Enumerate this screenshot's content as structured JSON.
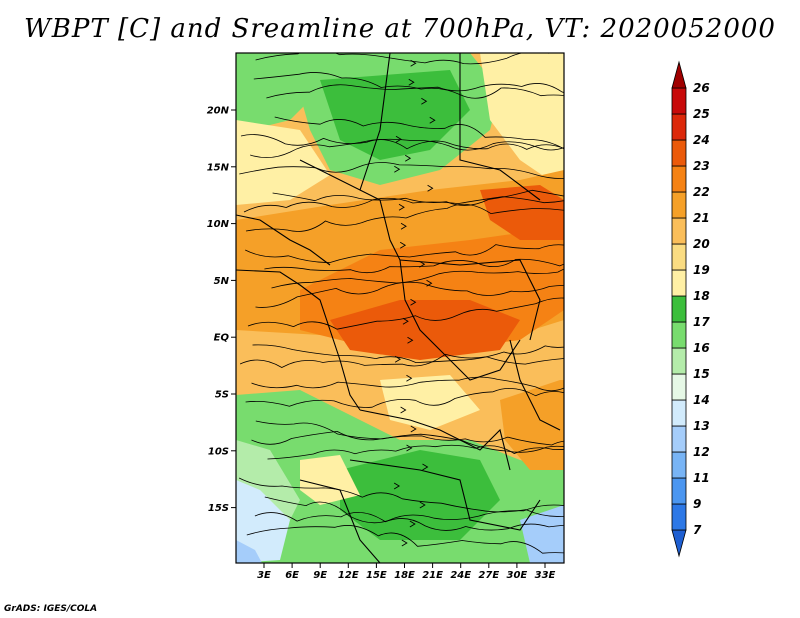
{
  "title": "WBPT [C] and Sreamline at 700hPa, VT: 2020052000",
  "credit": "GrADS: IGES/COLA",
  "map": {
    "lat_ticks": [
      "20N",
      "15N",
      "10N",
      "5N",
      "EQ",
      "5S",
      "10S",
      "15S"
    ],
    "lon_ticks": [
      "3E",
      "6E",
      "9E",
      "12E",
      "15E",
      "18E",
      "21E",
      "24E",
      "27E",
      "30E",
      "33E"
    ]
  },
  "colorbar": {
    "levels": [
      "7",
      "9",
      "11",
      "12",
      "13",
      "14",
      "15",
      "16",
      "17",
      "18",
      "19",
      "20",
      "21",
      "22",
      "23",
      "24",
      "25",
      "26"
    ],
    "colors": [
      "#1e5fd2",
      "#2d78e6",
      "#4b96f0",
      "#78b4f5",
      "#a5cdfa",
      "#d2ebfc",
      "#e6f8e6",
      "#b4ecaa",
      "#78dc6e",
      "#3cbe3c",
      "#fff0a5",
      "#fadc82",
      "#fabe5a",
      "#f5a028",
      "#f58214",
      "#eb5a0a",
      "#dc280a",
      "#c80a0a",
      "#a00000"
    ]
  },
  "colors": {
    "green_light": "#b4ecaa",
    "green_mid": "#78dc6e",
    "green_dark": "#3cbe3c",
    "yellow": "#fff0a5",
    "orange_light": "#fabe5a",
    "orange": "#f5a028",
    "orange_dark": "#f58214",
    "red_orange": "#eb5a0a",
    "blue_light": "#a5cdfa",
    "blue_pale": "#d2ebfc"
  }
}
